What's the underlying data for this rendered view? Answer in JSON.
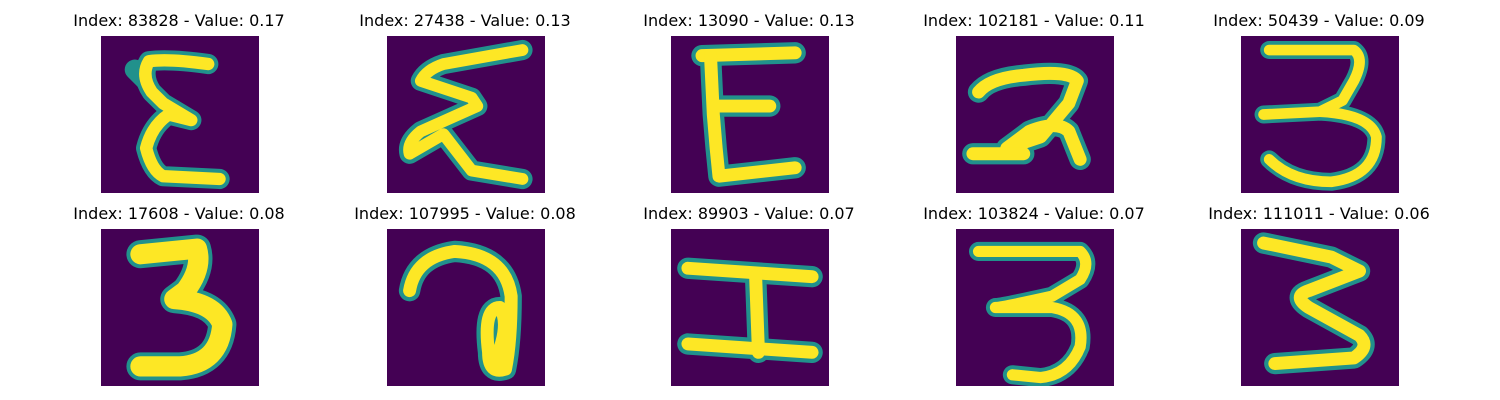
{
  "panels": [
    {
      "title": "Index: 83828 - Value: 0.17",
      "index": 83828,
      "value": 0.17
    },
    {
      "title": "Index: 27438 - Value: 0.13",
      "index": 27438,
      "value": 0.13
    },
    {
      "title": "Index: 13090 - Value: 0.13",
      "index": 13090,
      "value": 0.13
    },
    {
      "title": "Index: 102181 - Value: 0.11",
      "index": 102181,
      "value": 0.11
    },
    {
      "title": "Index: 50439 - Value: 0.09",
      "index": 50439,
      "value": 0.09
    },
    {
      "title": "Index: 17608 - Value: 0.08",
      "index": 17608,
      "value": 0.08
    },
    {
      "title": "Index: 107995 - Value: 0.08",
      "index": 107995,
      "value": 0.08
    },
    {
      "title": "Index: 89903 - Value: 0.07",
      "index": 89903,
      "value": 0.07
    },
    {
      "title": "Index: 103824 - Value: 0.07",
      "index": 103824,
      "value": 0.07
    },
    {
      "title": "Index: 111011 - Value: 0.06",
      "index": 111011,
      "value": 0.06
    }
  ],
  "colors": {
    "background": "#440154",
    "edge": "#21918c",
    "stroke": "#fde725"
  }
}
